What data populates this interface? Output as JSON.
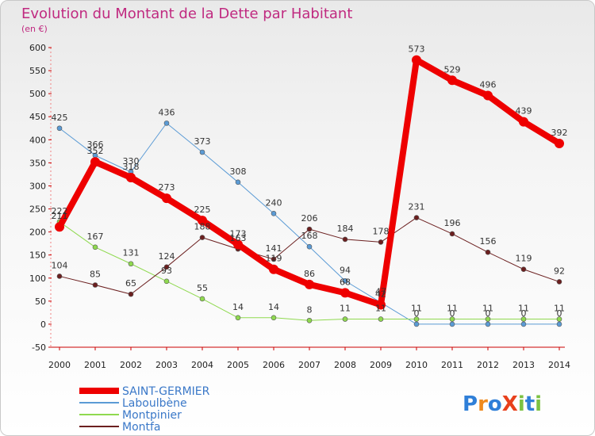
{
  "chart_data": {
    "type": "line",
    "title": "Evolution du Montant de la Dette par Habitant",
    "subtitle": "(en €)",
    "xlabel": "",
    "ylabel": "",
    "x": [
      2000,
      2001,
      2002,
      2003,
      2004,
      2005,
      2006,
      2007,
      2008,
      2009,
      2010,
      2011,
      2012,
      2013,
      2014
    ],
    "x_labels": [
      "2000",
      "2001",
      "2002",
      "2003",
      "2004",
      "2005",
      "2006",
      "2007",
      "2008",
      "2009",
      "2010",
      "2011",
      "2012",
      "2013",
      "2014"
    ],
    "ylim": [
      -50,
      600
    ],
    "y_ticks": [
      -50,
      0,
      50,
      100,
      150,
      200,
      250,
      300,
      350,
      400,
      450,
      500,
      550,
      600
    ],
    "grid": false,
    "legend_position": "bottom-left",
    "series": [
      {
        "name": "SAINT-GERMIER",
        "color": "#ee0000",
        "values": [
          211,
          352,
          318,
          273,
          225,
          173,
          119,
          86,
          68,
          42,
          573,
          529,
          496,
          439,
          392
        ]
      },
      {
        "name": "Laboulbène",
        "color": "#5b9bd5",
        "values": [
          425,
          366,
          330,
          436,
          373,
          308,
          240,
          168,
          94,
          47,
          0,
          0,
          0,
          0,
          0
        ]
      },
      {
        "name": "Montpinier",
        "color": "#8fd94f",
        "values": [
          222,
          167,
          131,
          93,
          55,
          14,
          14,
          8,
          11,
          11,
          11,
          11,
          11,
          11,
          11
        ]
      },
      {
        "name": "Montfa",
        "color": "#6b1f1f",
        "values": [
          104,
          85,
          65,
          124,
          188,
          163,
          141,
          206,
          184,
          178,
          231,
          196,
          156,
          119,
          92
        ]
      }
    ]
  },
  "logo": {
    "text": "ProXiti"
  }
}
